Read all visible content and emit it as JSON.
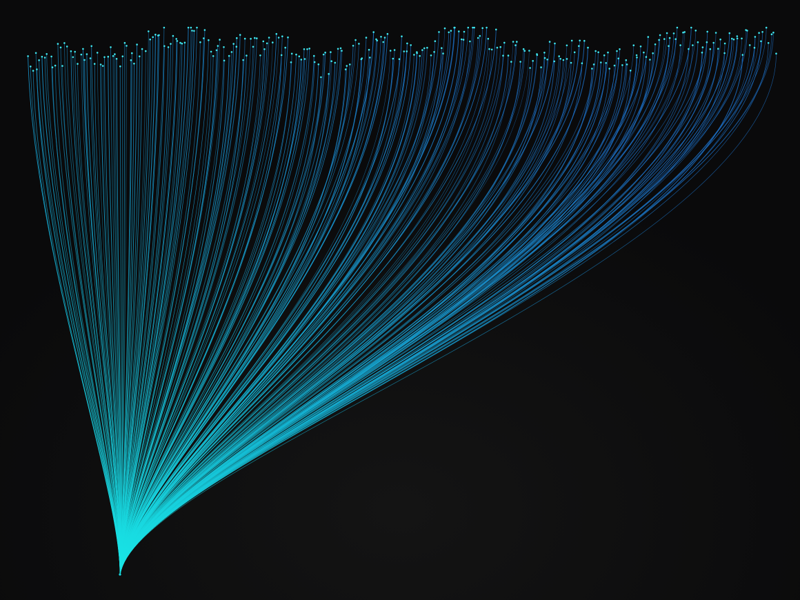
{
  "scene": {
    "subject": "fiber-optic-strands",
    "colors": {
      "background": "#0b0b0c",
      "base_strand": "#17d8e0",
      "tip_strand": "#1a73c8",
      "tip_dot": "#3fe7f0"
    },
    "strand_count": 300
  }
}
